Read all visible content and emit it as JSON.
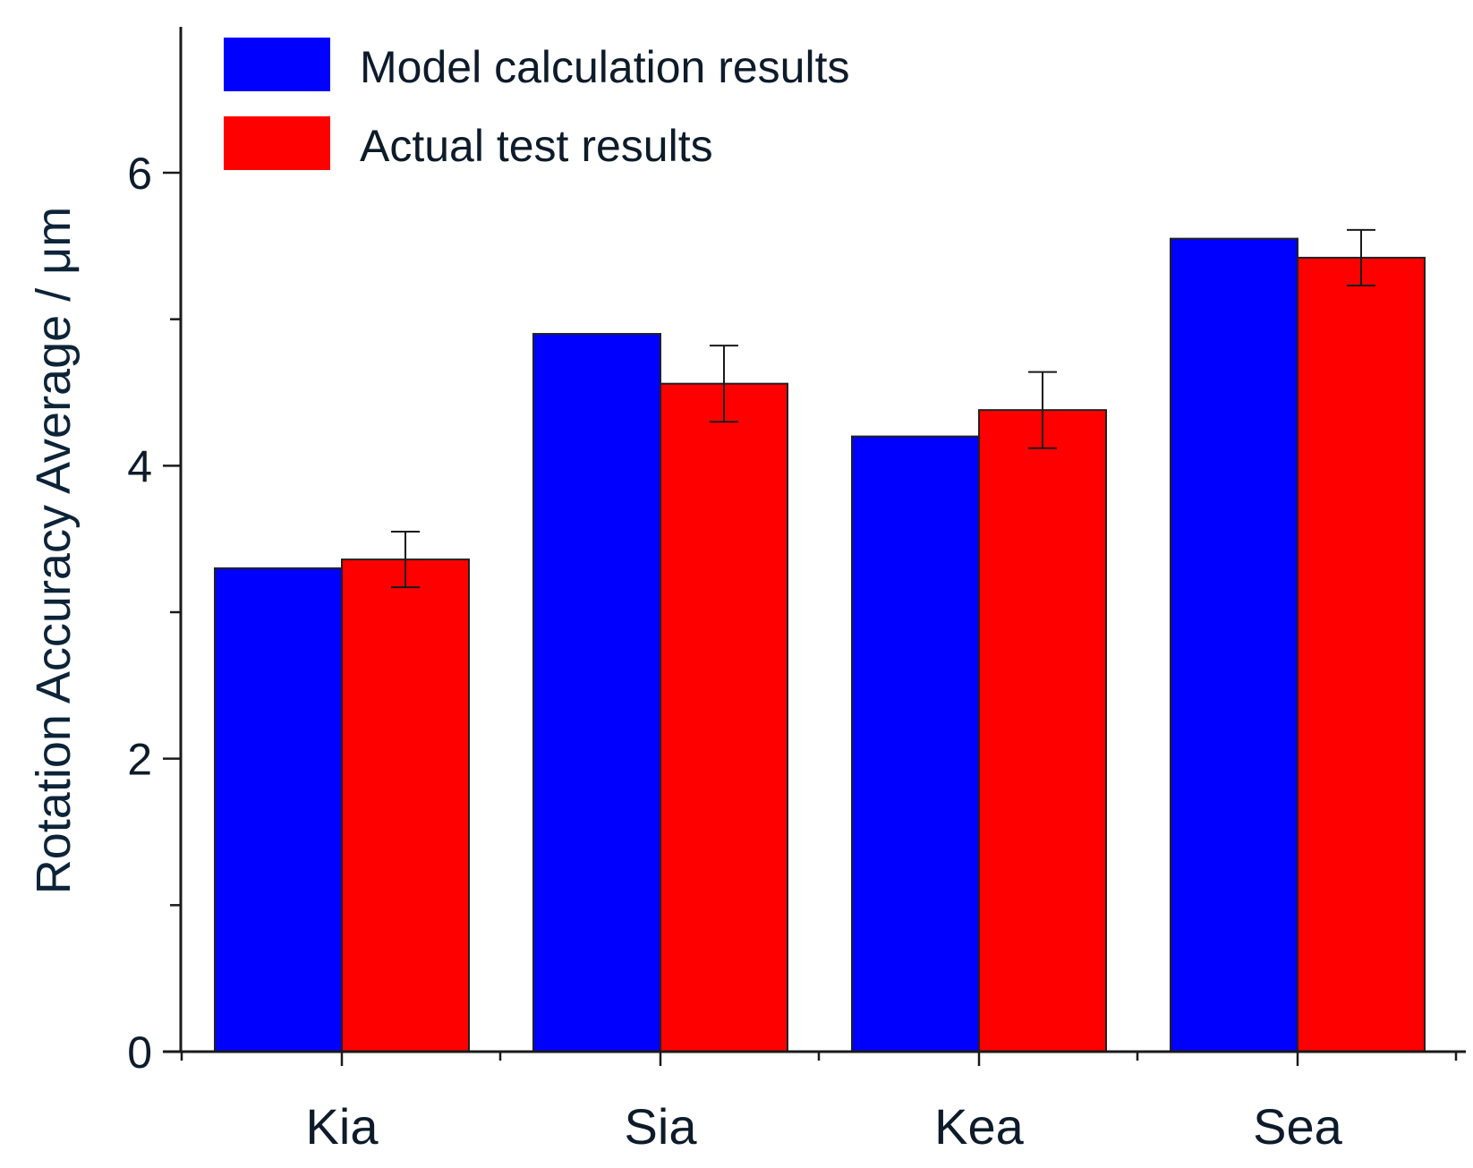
{
  "chart_data": {
    "type": "bar",
    "title": "",
    "xlabel": "",
    "ylabel": "Rotation Accuracy Average / μm",
    "ylim": [
      0,
      7
    ],
    "yticks_major": [
      0,
      2,
      4,
      6
    ],
    "yticks_minor": [
      1,
      3,
      5,
      7
    ],
    "categories": [
      "Kia",
      "Sia",
      "Kea",
      "Sea"
    ],
    "series": [
      {
        "name": "Model calculation results",
        "color": "#0000ff",
        "values": [
          3.3,
          4.9,
          4.2,
          5.55
        ],
        "errors": null
      },
      {
        "name": "Actual test results",
        "color": "#ff0000",
        "values": [
          3.36,
          4.56,
          4.38,
          5.42
        ],
        "errors": [
          0.19,
          0.26,
          0.26,
          0.19
        ]
      }
    ],
    "legend_position": "top-left"
  }
}
